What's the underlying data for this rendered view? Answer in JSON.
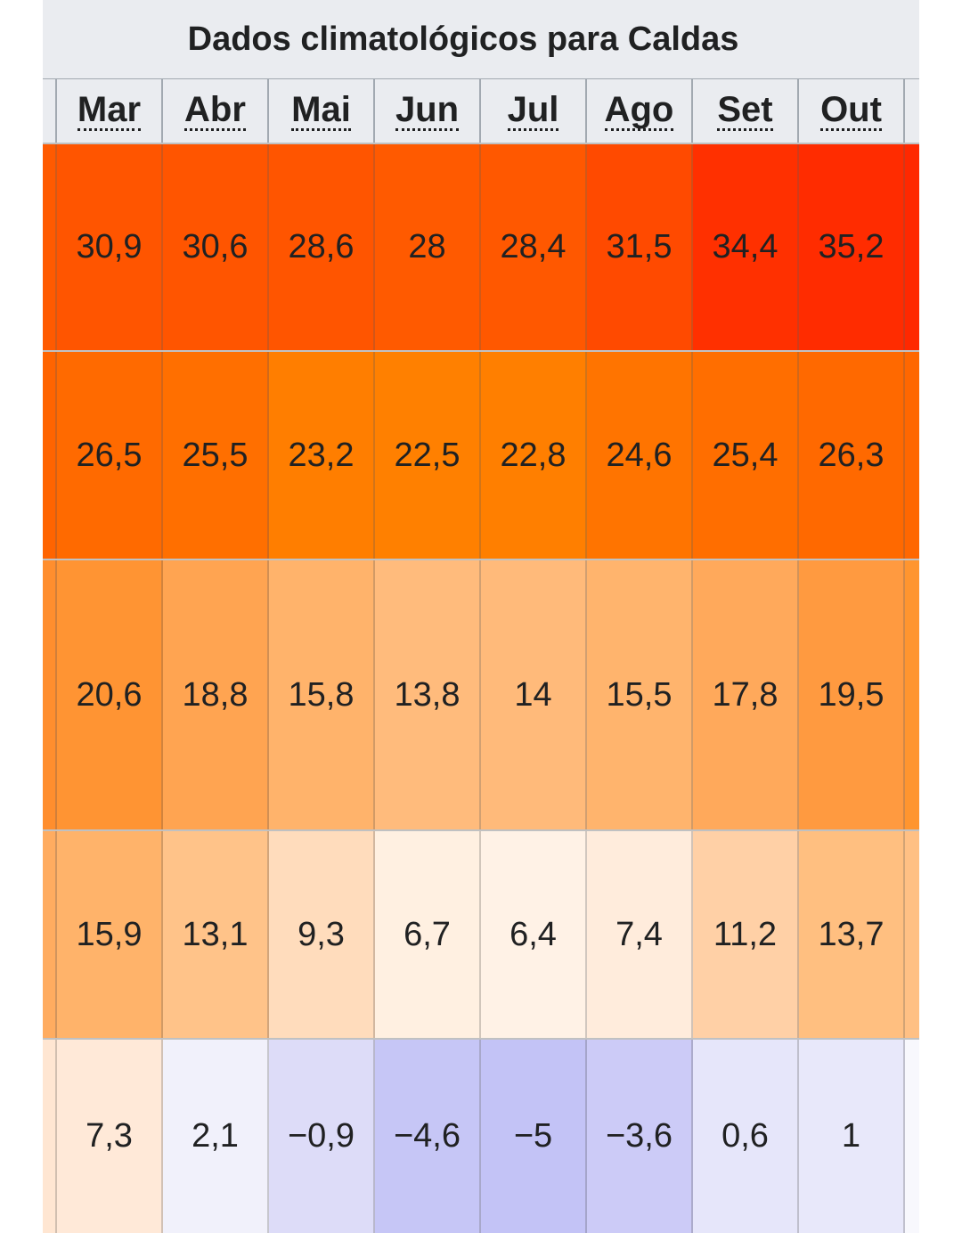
{
  "table": {
    "caption": "Dados climatológicos para Caldas",
    "months": [
      "Mar",
      "Abr",
      "Mai",
      "Jun",
      "Jul",
      "Ago",
      "Set",
      "Out"
    ],
    "rows": [
      {
        "values": [
          "30,9",
          "30,6",
          "28,6",
          "28",
          "28,4",
          "31,5",
          "34,4",
          "35,2"
        ],
        "colors": [
          "#ff5500",
          "#ff5500",
          "#ff5500",
          "#ff5a00",
          "#ff5800",
          "#ff4a00",
          "#ff3000",
          "#ff2c00"
        ],
        "edge_left_color": "#ff5a00",
        "edge_right_color": "#ff2800"
      },
      {
        "values": [
          "26,5",
          "25,5",
          "23,2",
          "22,5",
          "22,8",
          "24,6",
          "25,4",
          "26,3"
        ],
        "colors": [
          "#ff6a00",
          "#ff6f00",
          "#ff7e00",
          "#ff8000",
          "#ff7f00",
          "#ff7400",
          "#ff6e00",
          "#ff6900"
        ],
        "edge_left_color": "#ff6400",
        "edge_right_color": "#ff6700"
      },
      {
        "values": [
          "20,6",
          "18,8",
          "15,8",
          "13,8",
          "14",
          "15,5",
          "17,8",
          "19,5"
        ],
        "colors": [
          "#ff9433",
          "#ffa451",
          "#ffb36b",
          "#ffbb7c",
          "#ffba7a",
          "#ffb46d",
          "#ffa95b",
          "#ff9a40"
        ],
        "edge_left_color": "#ff8e2e",
        "edge_right_color": "#ff952f"
      },
      {
        "values": [
          "15,9",
          "13,1",
          "9,3",
          "6,7",
          "6,4",
          "7,4",
          "11,2",
          "13,7"
        ],
        "colors": [
          "#ffb36a",
          "#ffc389",
          "#ffdcbc",
          "#fff0e1",
          "#fff2e6",
          "#ffecdc",
          "#ffd0a6",
          "#ffbf80"
        ],
        "edge_left_color": "#ffac60",
        "edge_right_color": "#ffc084"
      },
      {
        "values": [
          "7,3",
          "2,1",
          "−0,9",
          "−4,6",
          "−5",
          "−3,6",
          "0,6",
          "1"
        ],
        "colors": [
          "#ffe9d8",
          "#f1f1fb",
          "#dddcf8",
          "#c6c6f6",
          "#c3c3f6",
          "#cccbf7",
          "#e6e6fa",
          "#e8e8fa"
        ],
        "edge_left_color": "#ffe6d2",
        "edge_right_color": "#f8f8fd"
      }
    ]
  }
}
